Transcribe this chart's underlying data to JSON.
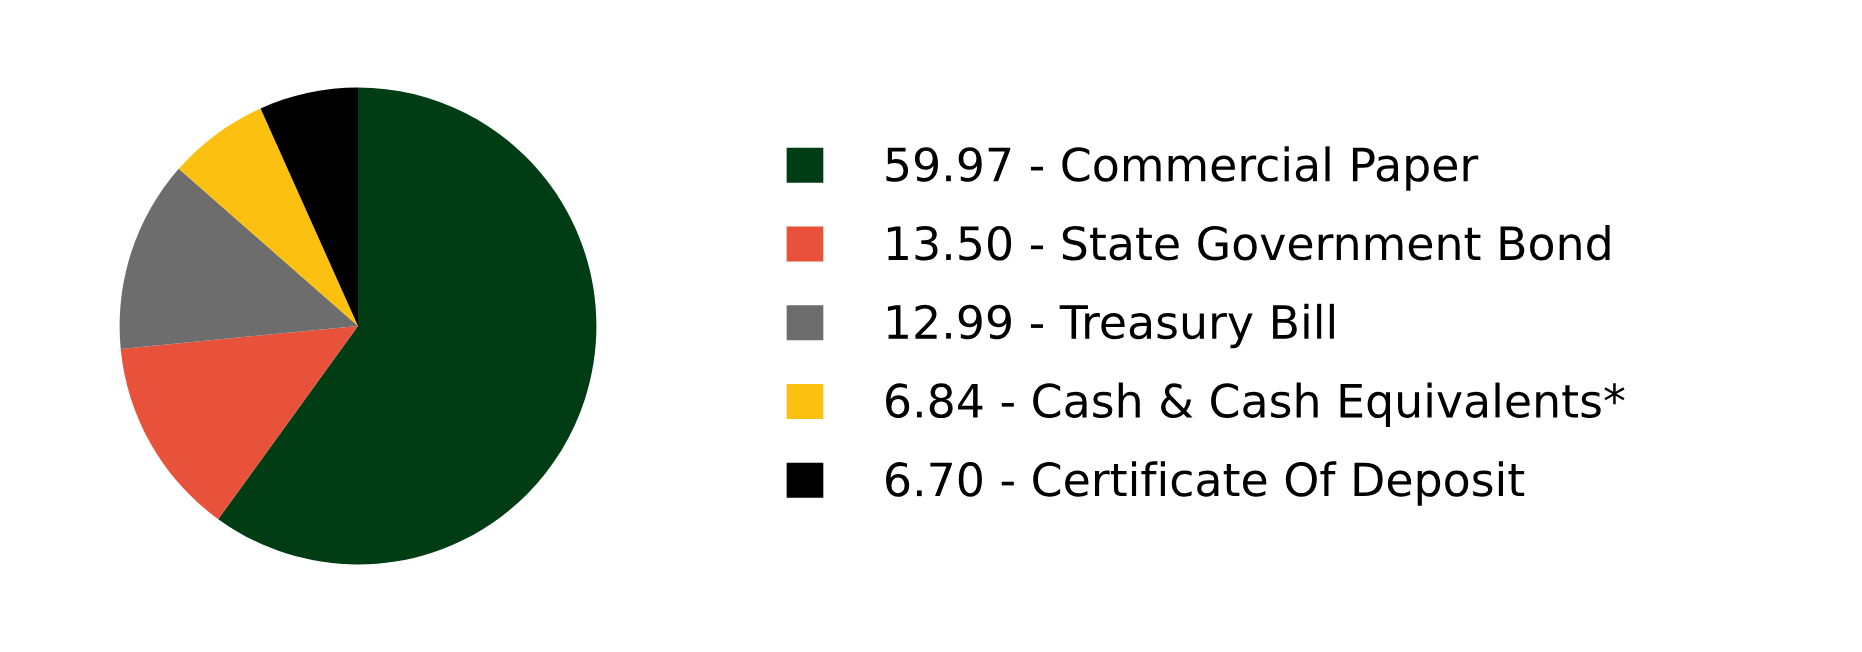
{
  "chart_data": {
    "type": "pie",
    "categories": [
      "59.97 - Commercial Paper",
      "13.50 - State Government Bond",
      "12.99 - Treasury Bill",
      "6.84 - Cash & Cash Equivalents*",
      "6.70 - Certificate Of Deposit"
    ],
    "values": [
      59.97,
      13.5,
      12.99,
      6.84,
      6.7
    ],
    "colors": [
      "#003d14",
      "#e8523a",
      "#6d6d6d",
      "#fcc010",
      "#000000"
    ],
    "legend": "right"
  }
}
